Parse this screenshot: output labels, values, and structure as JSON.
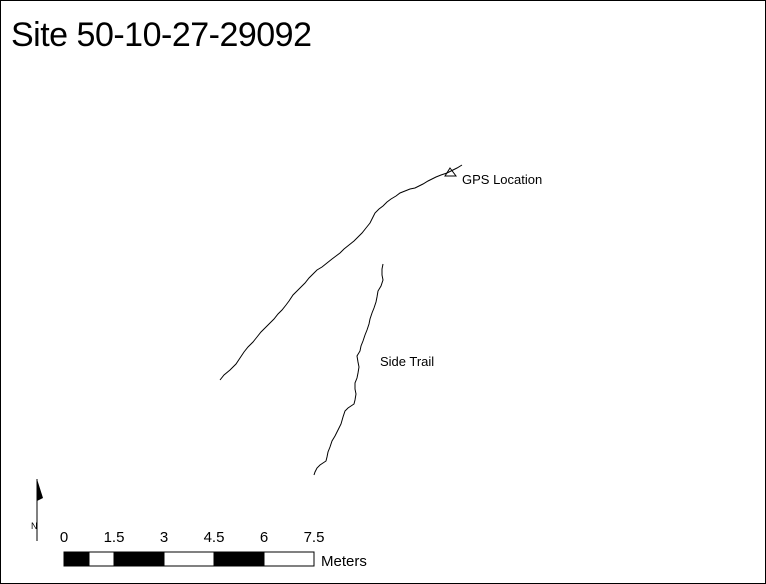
{
  "title": "Site 50-10-27-29092",
  "labels": {
    "gps": "GPS Location",
    "side_trail": "Side Trail"
  },
  "north": {
    "label": "N"
  },
  "scale_bar": {
    "ticks": [
      "0",
      "1.5",
      "3",
      "4.5",
      "6",
      "7.5"
    ],
    "unit": "Meters"
  },
  "colors": {
    "line": "#000000",
    "background": "#ffffff"
  },
  "icons": {
    "gps_marker": "triangle-outline",
    "north_arrow": "half-arrow"
  }
}
